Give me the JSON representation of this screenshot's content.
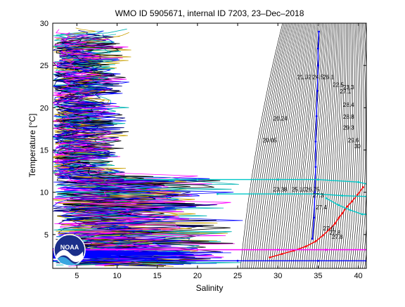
{
  "chart_data": {
    "type": "line",
    "title": "WMO ID 5905671, internal ID 7203, 23–Dec–2018",
    "xlabel": "Salinity",
    "ylabel": "Temperature [°C]",
    "xlim": [
      2,
      41
    ],
    "ylim": [
      1,
      30
    ],
    "x_ticks": [
      5,
      10,
      15,
      20,
      25,
      30,
      35,
      40
    ],
    "y_ticks": [
      5,
      10,
      15,
      20,
      25,
      30
    ],
    "grid": false,
    "logo_label": "NOAA",
    "colors": {
      "density_contours": "#000000",
      "noise_palette": [
        "#0000ff",
        "#ff00ff",
        "#c8a000",
        "#00b4b4",
        "#000080",
        "#000000"
      ],
      "profile_red": "#ff0000",
      "profile_blue": "#0000ff",
      "profile_cyan": "#00c8c8",
      "profile_magenta": "#ff00ff"
    },
    "contour_labels": [
      {
        "text": "20.24",
        "x": 30.3,
        "y": 18.5
      },
      {
        "text": "20.05",
        "x": 29.0,
        "y": 15.9
      },
      {
        "text": "21.32",
        "x": 33.3,
        "y": 23.4
      },
      {
        "text": "24.5",
        "x": 35.0,
        "y": 23.4
      },
      {
        "text": "26.1",
        "x": 36.3,
        "y": 23.4
      },
      {
        "text": "22.5",
        "x": 37.5,
        "y": 22.5
      },
      {
        "text": "23.3",
        "x": 38.8,
        "y": 22.2
      },
      {
        "text": "27.1",
        "x": 38.4,
        "y": 21.7
      },
      {
        "text": "28.4",
        "x": 38.8,
        "y": 20.1
      },
      {
        "text": "28.8",
        "x": 38.8,
        "y": 18.7
      },
      {
        "text": "29.3",
        "x": 38.8,
        "y": 17.4
      },
      {
        "text": "29.6",
        "x": 39.4,
        "y": 15.9
      },
      {
        "text": "30",
        "x": 39.9,
        "y": 15.2
      },
      {
        "text": "23.38",
        "x": 30.3,
        "y": 10.1
      },
      {
        "text": "25.10",
        "x": 32.6,
        "y": 10.1
      },
      {
        "text": "26.75",
        "x": 34.3,
        "y": 10.1
      },
      {
        "text": "27.3",
        "x": 35.0,
        "y": 9.4
      },
      {
        "text": "27.4",
        "x": 35.4,
        "y": 8.0
      },
      {
        "text": "27.6",
        "x": 36.3,
        "y": 5.5
      },
      {
        "text": "27.8",
        "x": 37.1,
        "y": 5.0
      },
      {
        "text": "27.8",
        "x": 37.4,
        "y": 4.5
      }
    ],
    "series": [
      {
        "color": "#ff0000",
        "x": [
          29.0,
          30.5,
          32.0,
          33.5,
          34.7,
          35.6,
          36.4,
          37.1,
          37.6,
          38.0,
          38.6,
          39.2,
          39.9,
          40.6
        ],
        "y": [
          2.3,
          2.7,
          3.1,
          3.6,
          4.2,
          4.9,
          5.6,
          6.3,
          7.0,
          7.5,
          8.3,
          8.9,
          9.7,
          10.6
        ]
      },
      {
        "color": "#0000ff",
        "x": [
          34.3,
          34.5,
          34.6,
          34.7,
          34.7,
          34.8,
          34.9,
          35.0,
          35.0,
          35.1
        ],
        "y": [
          4.5,
          7.0,
          10.0,
          13.0,
          16.0,
          19.0,
          22.0,
          25.0,
          27.0,
          29.0
        ]
      },
      {
        "color": "#00c8c8",
        "x": [
          11.0,
          20.0,
          30.0,
          35.0,
          40.0,
          41.0
        ],
        "y": [
          11.5,
          11.5,
          11.5,
          11.5,
          11.2,
          11.0
        ]
      },
      {
        "color": "#00c8c8",
        "x": [
          22.5,
          30.0,
          35.0,
          38.0,
          41.0
        ],
        "y": [
          9.8,
          9.8,
          9.8,
          9.6,
          9.5
        ]
      },
      {
        "color": "#00c8c8",
        "x": [
          36.0,
          37.5,
          39.0,
          40.5,
          41.0
        ],
        "y": [
          9.3,
          8.5,
          7.9,
          7.4,
          7.4
        ]
      },
      {
        "color": "#ff00ff",
        "x": [
          2.0,
          10.0,
          20.0,
          30.0,
          36.0,
          41.0
        ],
        "y": [
          3.2,
          3.2,
          3.2,
          3.2,
          3.2,
          3.2
        ]
      },
      {
        "color": "#0000ff",
        "x": [
          2.0,
          15.0,
          25.0,
          35.0,
          41.0
        ],
        "y": [
          1.9,
          1.9,
          1.9,
          1.9,
          1.9
        ]
      }
    ]
  }
}
